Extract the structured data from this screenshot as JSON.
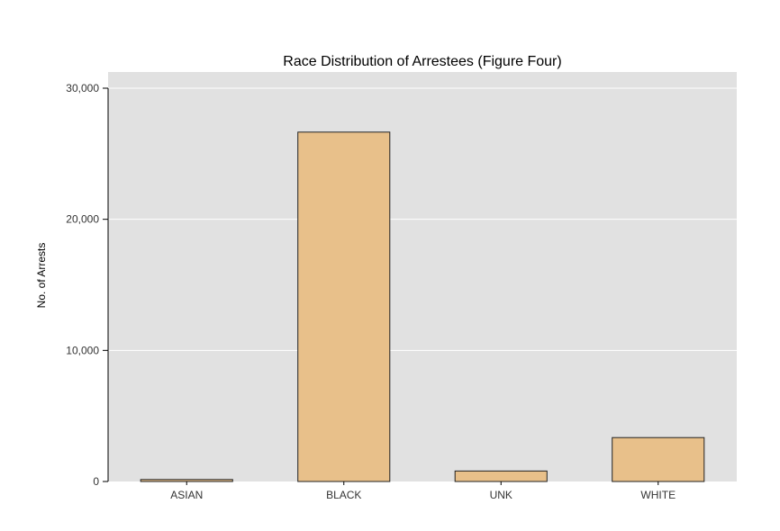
{
  "chart_data": {
    "type": "bar",
    "title": "Race Distribution of Arrestees (Figure Four)",
    "xlabel": "",
    "ylabel": "No. of Arrests",
    "categories": [
      "ASIAN",
      "BLACK",
      "UNK",
      "WHITE"
    ],
    "values": [
      150,
      26650,
      800,
      3350
    ],
    "ylim": [
      0,
      30000
    ],
    "yticks": [
      0,
      10000,
      20000,
      30000
    ],
    "ytick_labels": [
      "0",
      "10,000",
      "20,000",
      "30,000"
    ],
    "grid": true,
    "legend": "none",
    "colors": {
      "panel_background": "#e1e1e1",
      "bar_fill": "#e8c08a",
      "bar_outline": "#222222",
      "gridline": "#ffffff",
      "axis": "#000000"
    }
  }
}
